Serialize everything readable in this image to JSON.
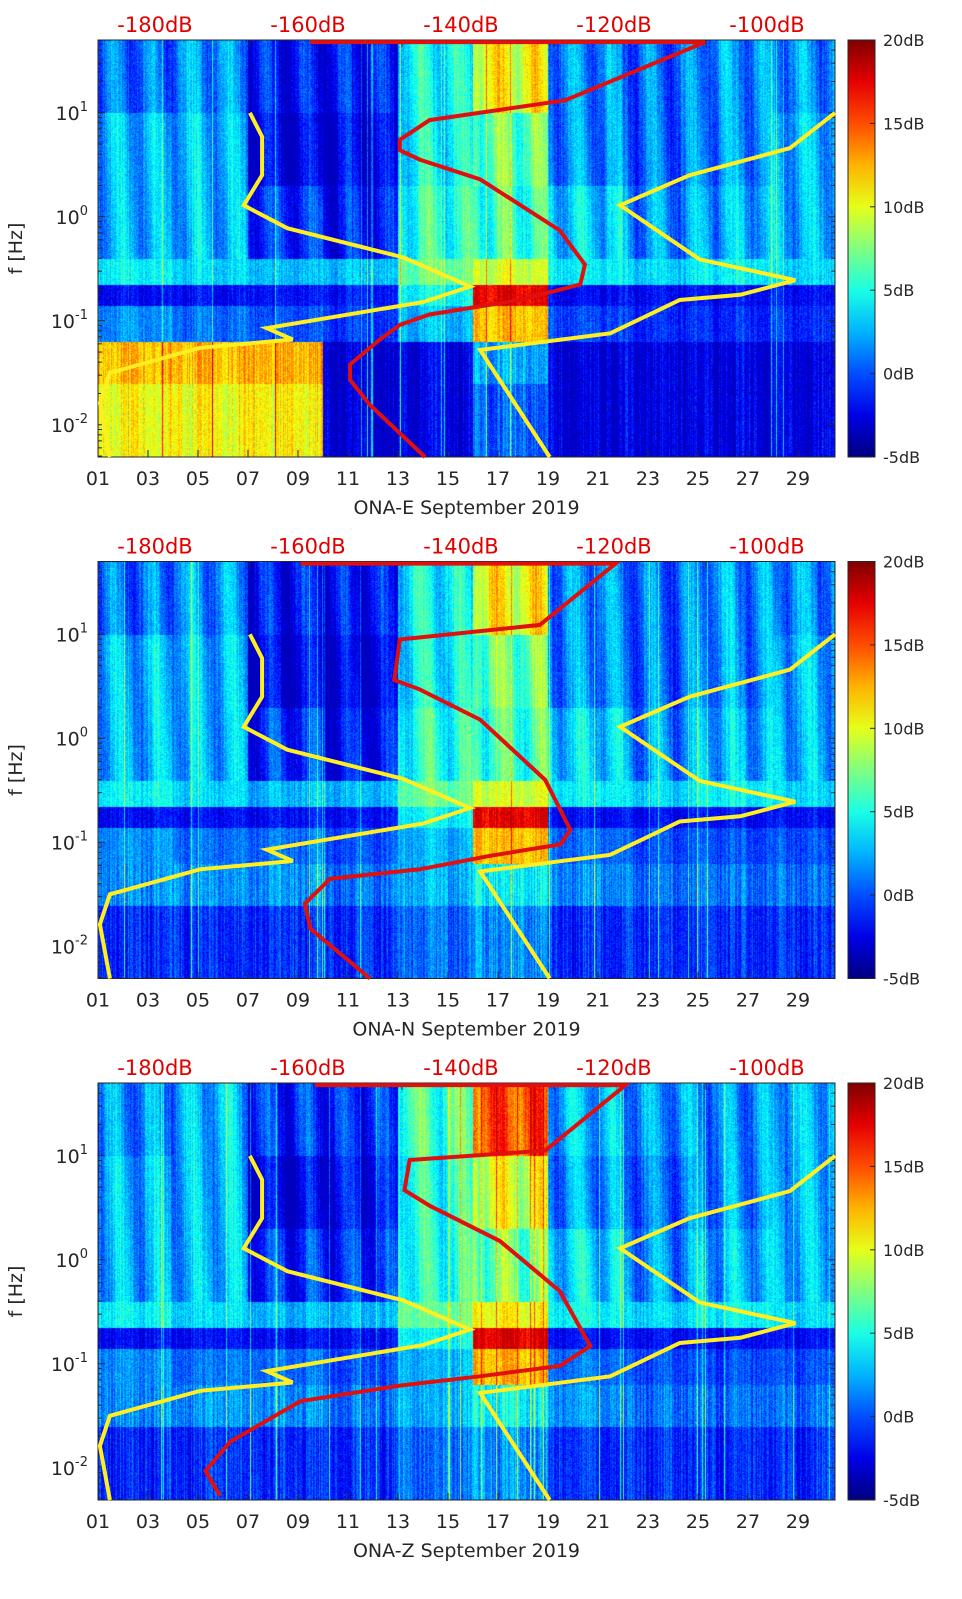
{
  "chart_data": {
    "type": "heatmap",
    "colormap": "jet",
    "colorbar": {
      "range": [
        -5,
        20
      ],
      "ticks": [
        "20dB",
        "15dB",
        "10dB",
        "5dB",
        "0dB",
        "-5dB"
      ]
    },
    "xlim_day": [
      1,
      30.5
    ],
    "x_ticks": [
      "01",
      "03",
      "05",
      "07",
      "09",
      "11",
      "13",
      "15",
      "17",
      "19",
      "21",
      "23",
      "25",
      "27",
      "29"
    ],
    "ylabel": "f [Hz]",
    "ylim_hz": [
      0.005,
      50
    ],
    "y_ticks": [
      "10^1",
      "10^0",
      "10^-1",
      "10^-2"
    ],
    "top_axis": {
      "labels": [
        "-180dB",
        "-160dB",
        "-140dB",
        "-120dB",
        "-100dB"
      ],
      "color": "#e00000"
    },
    "band_log10_hz_edges": [
      1.7,
      1.0,
      0.3,
      -0.4,
      -0.65,
      -0.85,
      -1.2,
      -1.6,
      -2.3
    ],
    "segment_day_edges": [
      1,
      4,
      7,
      10,
      13,
      16,
      19,
      22,
      25,
      28,
      31
    ],
    "noise_model_low": [
      [
        -167.6,
        1.0
      ],
      [
        -166.0,
        0.77
      ],
      [
        -166.0,
        0.4
      ],
      [
        -168.4,
        0.11
      ],
      [
        -162.7,
        -0.11
      ],
      [
        -147.6,
        -0.39
      ],
      [
        -138.8,
        -0.67
      ],
      [
        -145.0,
        -0.82
      ],
      [
        -165.4,
        -1.07
      ],
      [
        -162.0,
        -1.18
      ],
      [
        -174.1,
        -1.26
      ],
      [
        -185.9,
        -1.5
      ],
      [
        -187.2,
        -1.79
      ],
      [
        -185.9,
        -2.31
      ]
    ],
    "noise_model_high": [
      [
        -91.1,
        1.0
      ],
      [
        -97.0,
        0.66
      ],
      [
        -110.1,
        0.4
      ],
      [
        -119.2,
        0.11
      ],
      [
        -108.8,
        -0.41
      ],
      [
        -96.3,
        -0.61
      ],
      [
        -103.5,
        -0.75
      ],
      [
        -111.4,
        -0.8
      ],
      [
        -120.5,
        -1.12
      ],
      [
        -137.5,
        -1.28
      ],
      [
        -128.4,
        -2.31
      ]
    ],
    "panels": [
      {
        "title": "ONA-E September 2019",
        "grid_db": [
          [
            0,
            1,
            -3,
            -3,
            4,
            11,
            1,
            0,
            1,
            1
          ],
          [
            2,
            2,
            -4,
            -4,
            4,
            7,
            1,
            0,
            1,
            2
          ],
          [
            2,
            2,
            -2,
            -3,
            5,
            6,
            3,
            1,
            2,
            2
          ],
          [
            4,
            3,
            2,
            2,
            7,
            10,
            4,
            3,
            4,
            3
          ],
          [
            -3,
            -3,
            -3,
            -3,
            4,
            19,
            -3,
            -3,
            -3,
            -3
          ],
          [
            1,
            0,
            -1,
            -2,
            2,
            13,
            -1,
            -2,
            -2,
            -2
          ],
          [
            13,
            13,
            13,
            -5,
            -4,
            2,
            -4,
            -4,
            -4,
            -4
          ],
          [
            11,
            11,
            11,
            -5,
            -4,
            0,
            -4,
            -4,
            -4,
            -4
          ]
        ],
        "psd_curve": [
          [
            -159.7,
            1.68
          ],
          [
            -108.1,
            1.68
          ],
          [
            -126.4,
            1.12
          ],
          [
            -144.1,
            0.93
          ],
          [
            -148.0,
            0.74
          ],
          [
            -148.0,
            0.64
          ],
          [
            -145.4,
            0.55
          ],
          [
            -137.5,
            0.36
          ],
          [
            -127.1,
            -0.13
          ],
          [
            -123.8,
            -0.46
          ],
          [
            -124.4,
            -0.65
          ],
          [
            -132.3,
            -0.8
          ],
          [
            -144.1,
            -0.94
          ],
          [
            -148.0,
            -1.04
          ],
          [
            -150.6,
            -1.18
          ],
          [
            -154.5,
            -1.42
          ],
          [
            -154.5,
            -1.57
          ],
          [
            -151.9,
            -1.81
          ],
          [
            -144.7,
            -2.31
          ]
        ]
      },
      {
        "title": "ONA-N September 2019",
        "grid_db": [
          [
            0,
            1,
            -3,
            -3,
            4,
            11,
            1,
            0,
            1,
            1
          ],
          [
            2,
            2,
            -4,
            -4,
            4,
            7,
            1,
            0,
            1,
            2
          ],
          [
            2,
            2,
            -2,
            -3,
            5,
            6,
            3,
            1,
            2,
            2
          ],
          [
            4,
            3,
            2,
            2,
            7,
            10,
            4,
            3,
            4,
            3
          ],
          [
            -3,
            -3,
            -3,
            -3,
            4,
            19,
            -3,
            -3,
            -3,
            -3
          ],
          [
            1,
            0,
            0,
            -1,
            2,
            13,
            0,
            -1,
            -1,
            -1
          ],
          [
            1,
            1,
            1,
            0,
            2,
            4,
            1,
            0,
            0,
            0
          ],
          [
            -2,
            -2,
            -2,
            -2,
            0,
            1,
            -2,
            -2,
            -2,
            -2
          ]
        ],
        "psd_curve": [
          [
            -161.0,
            1.68
          ],
          [
            -119.8,
            1.68
          ],
          [
            -129.7,
            1.09
          ],
          [
            -148.0,
            0.95
          ],
          [
            -148.7,
            0.56
          ],
          [
            -145.4,
            0.47
          ],
          [
            -137.5,
            0.18
          ],
          [
            -129.0,
            -0.4
          ],
          [
            -125.7,
            -0.88
          ],
          [
            -127.0,
            -1.02
          ],
          [
            -136.2,
            -1.13
          ],
          [
            -145.4,
            -1.26
          ],
          [
            -157.1,
            -1.35
          ],
          [
            -160.4,
            -1.59
          ],
          [
            -159.7,
            -1.83
          ],
          [
            -151.9,
            -2.31
          ]
        ]
      },
      {
        "title": "ONA-Z September 2019",
        "grid_db": [
          [
            1,
            2,
            -2,
            -2,
            6,
            16,
            2,
            1,
            1,
            2
          ],
          [
            2,
            2,
            -4,
            -3,
            5,
            10,
            1,
            0,
            1,
            2
          ],
          [
            2,
            2,
            -2,
            -2,
            5,
            7,
            3,
            1,
            2,
            2
          ],
          [
            4,
            3,
            2,
            2,
            7,
            11,
            4,
            3,
            4,
            3
          ],
          [
            -3,
            -3,
            -3,
            -3,
            4,
            19,
            -3,
            -3,
            -3,
            -3
          ],
          [
            1,
            0,
            0,
            -1,
            2,
            13,
            0,
            -1,
            -1,
            -1
          ],
          [
            1,
            1,
            1,
            0,
            2,
            4,
            1,
            0,
            0,
            0
          ],
          [
            -2,
            -2,
            -2,
            -2,
            0,
            1,
            -2,
            -2,
            -2,
            -2
          ]
        ],
        "psd_curve": [
          [
            -159.1,
            1.68
          ],
          [
            -118.5,
            1.68
          ],
          [
            -129.0,
            1.05
          ],
          [
            -146.7,
            0.96
          ],
          [
            -147.4,
            0.67
          ],
          [
            -144.1,
            0.52
          ],
          [
            -134.9,
            0.18
          ],
          [
            -127.1,
            -0.3
          ],
          [
            -123.1,
            -0.83
          ],
          [
            -127.1,
            -1.02
          ],
          [
            -137.5,
            -1.12
          ],
          [
            -148.0,
            -1.21
          ],
          [
            -161.0,
            -1.36
          ],
          [
            -170.2,
            -1.75
          ],
          [
            -173.4,
            -2.03
          ],
          [
            -171.5,
            -2.27
          ]
        ]
      }
    ]
  }
}
